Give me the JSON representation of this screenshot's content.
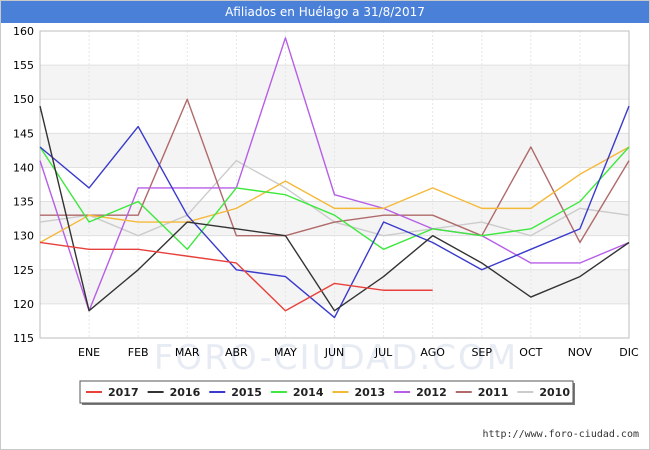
{
  "window": {
    "title": "Afiliados en Huélago a 31/8/2017"
  },
  "watermark": "FORO-CIUDAD.COM",
  "footer": {
    "url": "http://www.foro-ciudad.com"
  },
  "chart_data": {
    "type": "line",
    "title": "Afiliados en Huélago a 31/8/2017",
    "categories": [
      "",
      "ENE",
      "FEB",
      "MAR",
      "ABR",
      "MAY",
      "JUN",
      "JUL",
      "AGO",
      "SEP",
      "OCT",
      "NOV",
      "DIC"
    ],
    "y_ticks": [
      115,
      120,
      125,
      130,
      135,
      140,
      145,
      150,
      155,
      160
    ],
    "ylim": [
      115,
      160
    ],
    "grid": true,
    "legend_position": "bottom",
    "series": [
      {
        "name": "2017",
        "color": "#e8413c",
        "values": [
          129,
          128,
          128,
          127,
          126,
          119,
          123,
          122,
          122,
          null,
          null,
          null,
          null
        ]
      },
      {
        "name": "2016",
        "color": "#333333",
        "values": [
          149,
          119,
          125,
          132,
          131,
          130,
          119,
          124,
          130,
          126,
          121,
          124,
          129
        ]
      },
      {
        "name": "2015",
        "color": "#3a3acc",
        "values": [
          143,
          137,
          146,
          133,
          125,
          124,
          118,
          132,
          129,
          125,
          128,
          131,
          149
        ]
      },
      {
        "name": "2014",
        "color": "#3ee83e",
        "values": [
          143,
          132,
          135,
          128,
          137,
          136,
          133,
          128,
          131,
          130,
          131,
          135,
          143
        ]
      },
      {
        "name": "2013",
        "color": "#f5b93a",
        "values": [
          129,
          133,
          132,
          132,
          134,
          138,
          134,
          134,
          137,
          134,
          134,
          139,
          143
        ]
      },
      {
        "name": "2012",
        "color": "#b65ee6",
        "values": [
          141,
          119,
          137,
          137,
          137,
          159,
          136,
          134,
          131,
          130,
          126,
          126,
          129
        ]
      },
      {
        "name": "2011",
        "color": "#b06a6a",
        "values": [
          133,
          133,
          133,
          150,
          130,
          130,
          132,
          133,
          133,
          130,
          143,
          129,
          141
        ]
      },
      {
        "name": "2010",
        "color": "#cccccc",
        "values": [
          132,
          133,
          130,
          133,
          141,
          137,
          132,
          130,
          131,
          132,
          130,
          134,
          133
        ]
      }
    ]
  }
}
